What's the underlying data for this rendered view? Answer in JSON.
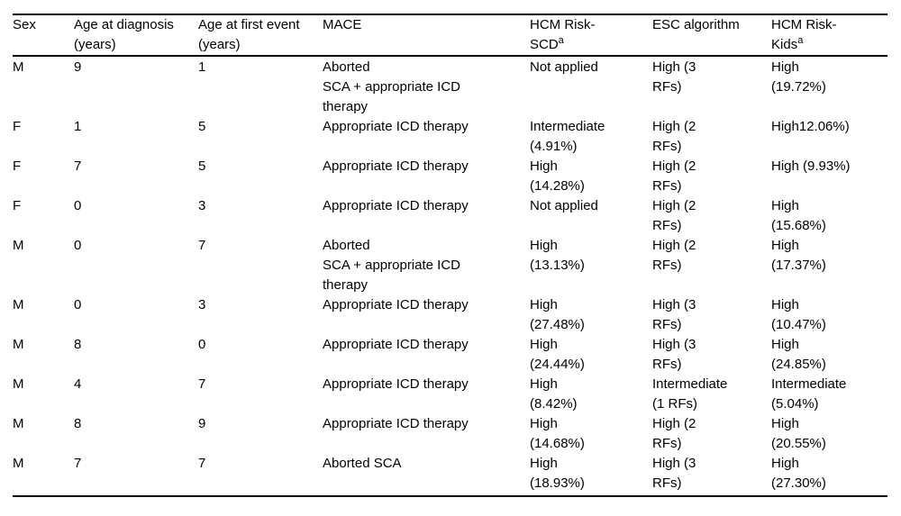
{
  "page": {
    "background_color": "#ffffff",
    "text_color": "#000000",
    "rule_color": "#000000"
  },
  "table": {
    "columns": [
      {
        "label": "Sex",
        "sup": ""
      },
      {
        "label": "Age at diagnosis\n(years)",
        "sup": ""
      },
      {
        "label": "Age at first event\n(years)",
        "sup": ""
      },
      {
        "label": "MACE",
        "sup": ""
      },
      {
        "label": "HCM Risk-\nSCD",
        "sup": "a"
      },
      {
        "label": "ESC algorithm",
        "sup": ""
      },
      {
        "label": "HCM Risk-\nKids",
        "sup": "a"
      }
    ],
    "rows": [
      {
        "sex": "M",
        "age_diagnosis": "9",
        "age_first_event": "1",
        "mace": "Aborted\nSCA + appropriate ICD\ntherapy",
        "hcm_risk_scd": "Not applied",
        "esc_algorithm": "High (3\nRFs)",
        "hcm_risk_kids": "High\n(19.72%)"
      },
      {
        "sex": "F",
        "age_diagnosis": "1",
        "age_first_event": "5",
        "mace": "Appropriate ICD therapy",
        "hcm_risk_scd": "Intermediate\n(4.91%)",
        "esc_algorithm": "High (2\nRFs)",
        "hcm_risk_kids": "High12.06%)"
      },
      {
        "sex": "F",
        "age_diagnosis": "7",
        "age_first_event": "5",
        "mace": "Appropriate ICD therapy",
        "hcm_risk_scd": "High\n(14.28%)",
        "esc_algorithm": "High (2\nRFs)",
        "hcm_risk_kids": "High (9.93%)"
      },
      {
        "sex": "F",
        "age_diagnosis": "0",
        "age_first_event": "3",
        "mace": "Appropriate ICD therapy",
        "hcm_risk_scd": "Not applied",
        "esc_algorithm": "High (2\nRFs)",
        "hcm_risk_kids": "High\n(15.68%)"
      },
      {
        "sex": "M",
        "age_diagnosis": "0",
        "age_first_event": "7",
        "mace": "Aborted\nSCA + appropriate ICD\ntherapy",
        "hcm_risk_scd": "High\n(13.13%)",
        "esc_algorithm": "High (2\nRFs)",
        "hcm_risk_kids": "High\n(17.37%)"
      },
      {
        "sex": "M",
        "age_diagnosis": "0",
        "age_first_event": "3",
        "mace": "Appropriate ICD therapy",
        "hcm_risk_scd": "High\n(27.48%)",
        "esc_algorithm": "High (3\nRFs)",
        "hcm_risk_kids": "High\n(10.47%)"
      },
      {
        "sex": "M",
        "age_diagnosis": "8",
        "age_first_event": "0",
        "mace": "Appropriate ICD therapy",
        "hcm_risk_scd": "High\n(24.44%)",
        "esc_algorithm": "High (3\nRFs)",
        "hcm_risk_kids": "High\n(24.85%)"
      },
      {
        "sex": "M",
        "age_diagnosis": "4",
        "age_first_event": "7",
        "mace": "Appropriate ICD therapy",
        "hcm_risk_scd": "High\n(8.42%)",
        "esc_algorithm": "Intermediate\n(1 RFs)",
        "hcm_risk_kids": "Intermediate\n(5.04%)"
      },
      {
        "sex": "M",
        "age_diagnosis": "8",
        "age_first_event": "9",
        "mace": "Appropriate ICD therapy",
        "hcm_risk_scd": "High\n(14.68%)",
        "esc_algorithm": "High (2\nRFs)",
        "hcm_risk_kids": "High\n(20.55%)"
      },
      {
        "sex": "M",
        "age_diagnosis": "7",
        "age_first_event": "7",
        "mace": "Aborted SCA",
        "hcm_risk_scd": "High\n(18.93%)",
        "esc_algorithm": "High (3\nRFs)",
        "hcm_risk_kids": "High\n(27.30%)"
      }
    ]
  }
}
